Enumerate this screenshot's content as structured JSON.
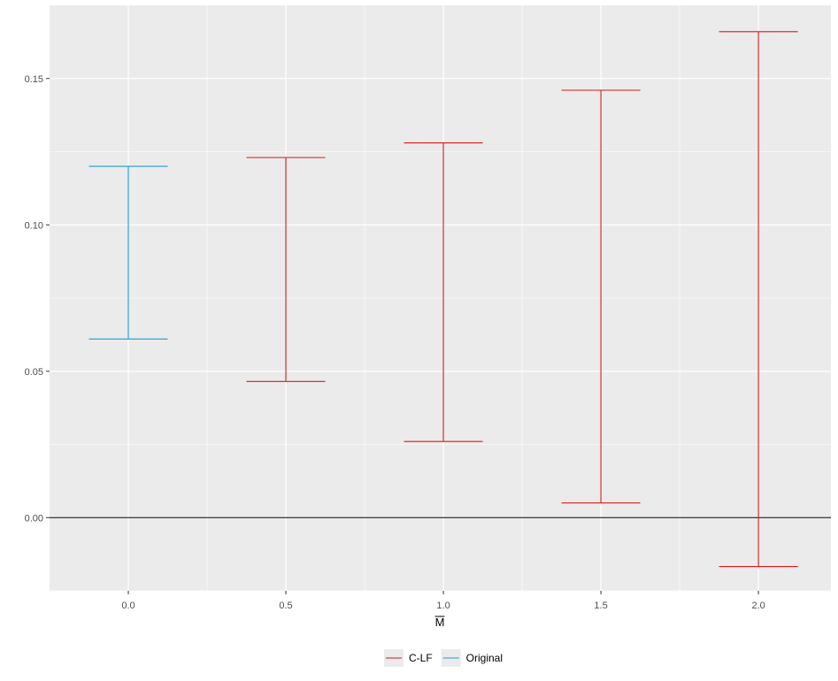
{
  "chart_data": {
    "type": "errorbar",
    "xlabel": "M",
    "xlabel_overline": true,
    "ylabel": "",
    "x_ticks": [
      "0.0",
      "0.5",
      "1.0",
      "1.5",
      "2.0"
    ],
    "y_ticks": [
      "0.00",
      "0.05",
      "0.10",
      "0.15"
    ],
    "xlim": [
      -0.25,
      2.23
    ],
    "ylim": [
      -0.025,
      0.175
    ],
    "hline": 0,
    "grid": true,
    "legend_position": "bottom",
    "series": [
      {
        "name": "C-LF",
        "color": "#d7191c",
        "points": [
          {
            "x": 0.5,
            "lower": 0.0465,
            "upper": 0.123
          },
          {
            "x": 1.0,
            "lower": 0.026,
            "upper": 0.128
          },
          {
            "x": 1.5,
            "lower": 0.005,
            "upper": 0.146
          },
          {
            "x": 2.0,
            "lower": -0.0167,
            "upper": 0.166
          }
        ]
      },
      {
        "name": "Original",
        "color": "#1f9bd1",
        "points": [
          {
            "x": 0.0,
            "lower": 0.061,
            "upper": 0.12
          }
        ]
      }
    ],
    "errorbar_half_width": 0.125
  }
}
